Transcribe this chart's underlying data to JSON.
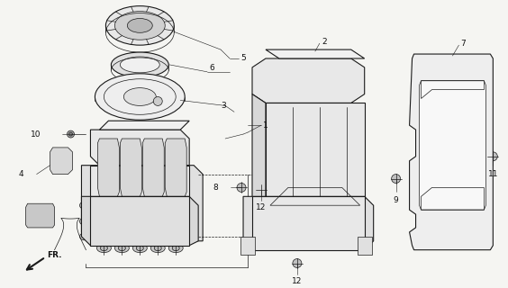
{
  "bg_color": "#f5f5f2",
  "line_color": "#1a1a1a",
  "label_color": "#111111",
  "figsize": [
    5.64,
    3.2
  ],
  "dpi": 100,
  "label_fs": 6.5,
  "lw_main": 0.8,
  "lw_thin": 0.5,
  "lw_leader": 0.4
}
